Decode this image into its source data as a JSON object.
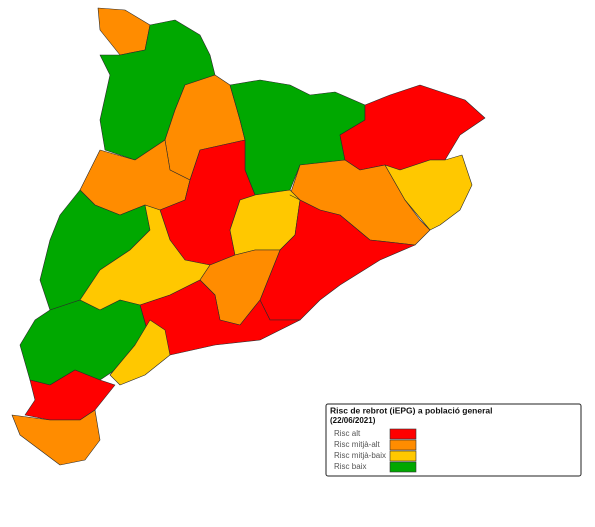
{
  "legend": {
    "title": "Risc de rebrot (iEPG) a població general",
    "subtitle": "(22/06/2021)",
    "items": [
      {
        "label": "Risc alt",
        "color": "#ff0000"
      },
      {
        "label": "Risc mitjà-alt",
        "color": "#ff8c00"
      },
      {
        "label": "Risc mitjà-baix",
        "color": "#ffc800"
      },
      {
        "label": "Risc baix",
        "color": "#00a800"
      }
    ]
  }
}
